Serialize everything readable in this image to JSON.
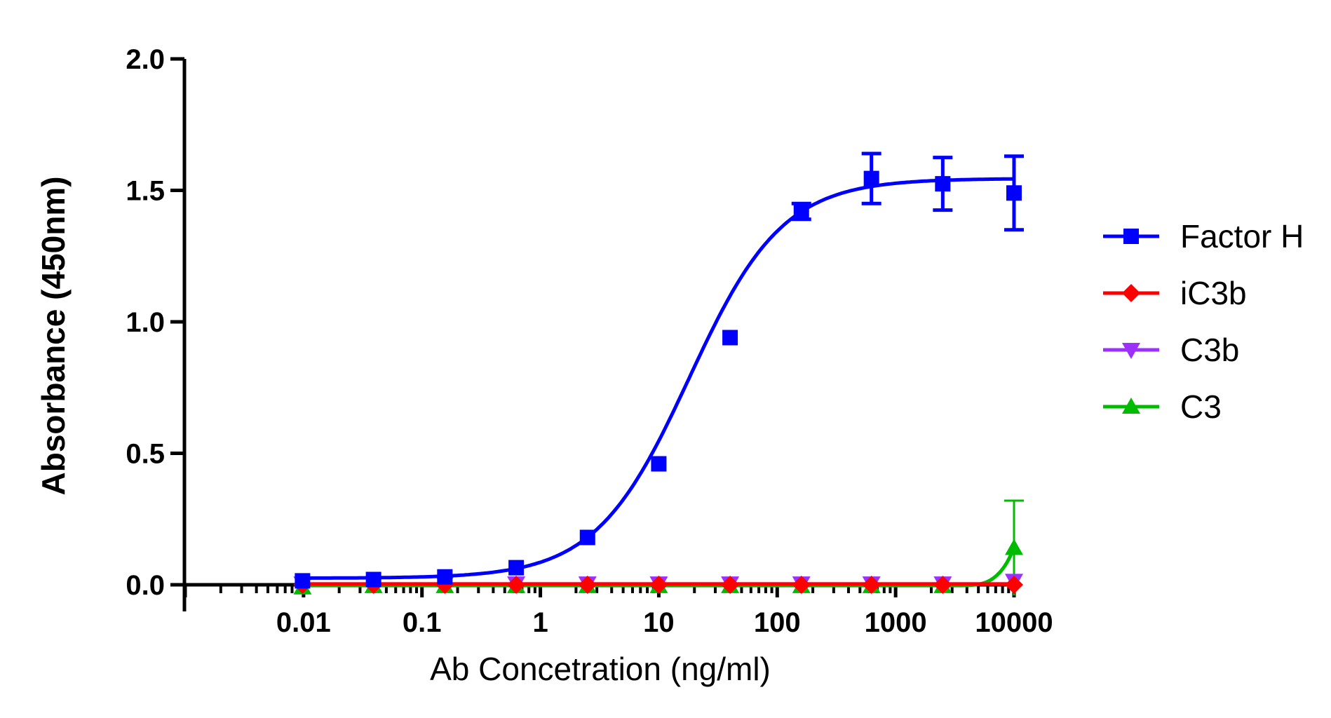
{
  "chart_data": {
    "type": "scatter",
    "xlabel": "Ab Concetration (ng/ml)",
    "ylabel": "Absorbance  (450nm)",
    "x_scale": "log",
    "xlim": [
      0.001,
      10000
    ],
    "ylim": [
      0,
      2.0
    ],
    "yticks": [
      "0.0",
      "0.5",
      "1.0",
      "1.5",
      "2.0"
    ],
    "xticks": [
      "0.01",
      "0.1",
      "1",
      "10",
      "100",
      "1000",
      "10000"
    ],
    "legend_position": "right",
    "grid": false,
    "x": [
      0.0098,
      0.039,
      0.156,
      0.625,
      2.5,
      10,
      40,
      160,
      625,
      2500,
      10000
    ],
    "series": [
      {
        "name": "Factor H",
        "marker": "square",
        "color": "#0000ff",
        "values": [
          0.015,
          0.02,
          0.03,
          0.065,
          0.18,
          0.46,
          0.94,
          1.42,
          1.545,
          1.525,
          1.49
        ],
        "error": [
          0,
          0,
          0,
          0,
          0,
          0,
          0,
          0.03,
          0.095,
          0.1,
          0.14
        ],
        "fit": {
          "bottom": 0.025,
          "top": 1.545,
          "ec50": 18,
          "hill": 1.1
        }
      },
      {
        "name": "iC3b",
        "marker": "diamond",
        "color": "#ff0000",
        "values": [
          0.0,
          0.0,
          0.0,
          0.0,
          0.0,
          0.0,
          0.0,
          0.0,
          0.0,
          0.0,
          0.0
        ],
        "error": [
          0,
          0,
          0,
          0,
          0,
          0,
          0,
          0,
          0,
          0,
          0
        ],
        "fit": {
          "type": "flat",
          "value": 0.003
        }
      },
      {
        "name": "C3b",
        "marker": "triangle-down",
        "color": "#9b30ff",
        "values": [
          0.005,
          0.005,
          0.005,
          0.005,
          0.005,
          0.005,
          0.005,
          0.005,
          0.005,
          0.005,
          0.015
        ],
        "error": [
          0,
          0,
          0,
          0,
          0,
          0,
          0,
          0,
          0,
          0,
          0
        ],
        "fit": {
          "type": "flat",
          "value": 0.003
        }
      },
      {
        "name": "C3",
        "marker": "triangle-up",
        "color": "#00bb00",
        "values": [
          -0.01,
          -0.005,
          -0.005,
          -0.005,
          -0.005,
          -0.005,
          -0.005,
          -0.005,
          -0.005,
          -0.005,
          0.14
        ],
        "error": [
          0,
          0,
          0,
          0,
          0,
          0,
          0,
          0,
          0,
          0,
          0.18
        ],
        "fit": {
          "type": "rise",
          "base": -0.003,
          "top": 0.14,
          "x0": 3000,
          "x1": 10000
        }
      }
    ]
  }
}
